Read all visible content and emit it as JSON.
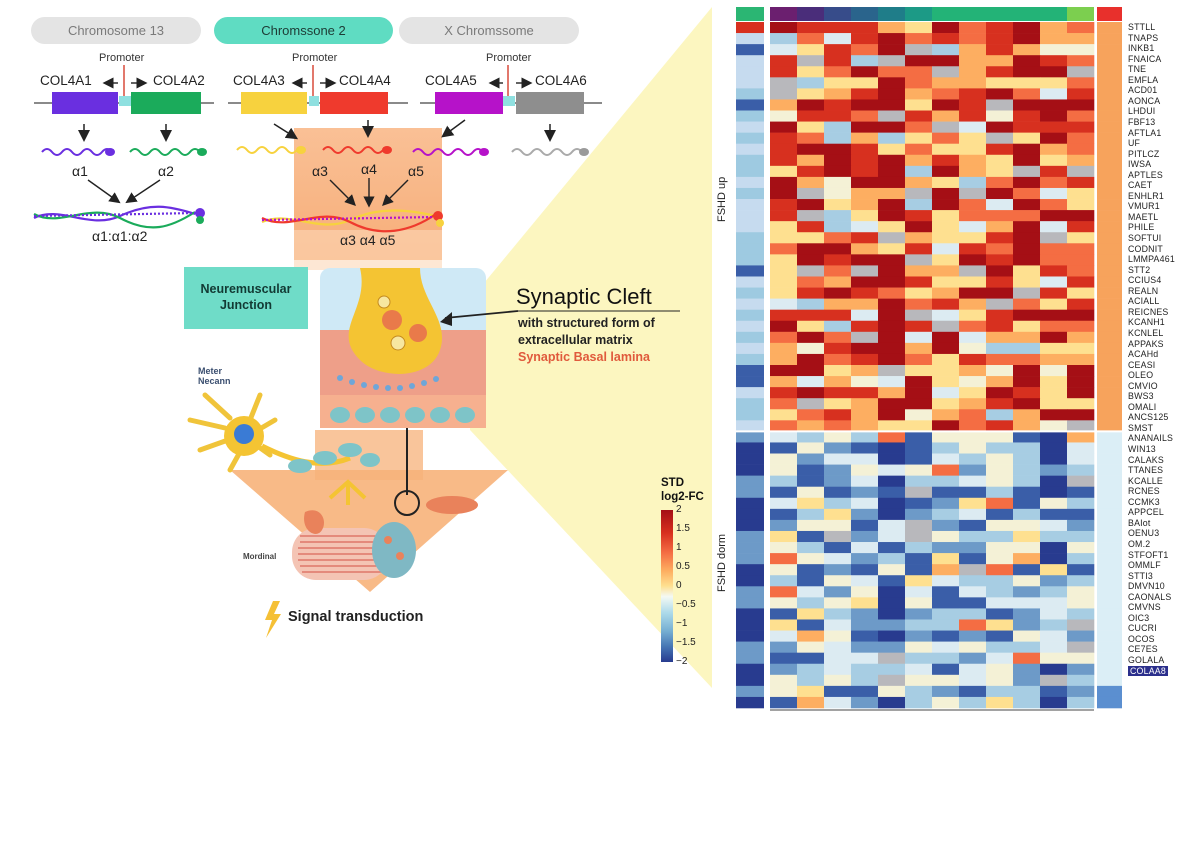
{
  "chromosomes": [
    "Chromosome 13",
    "Chromssone 2",
    "X Chromssome"
  ],
  "genes": [
    "COL4A1",
    "COL4A2",
    "COL4A3",
    "COL4A4",
    "COL4A5",
    "COL4A6"
  ],
  "promoter_label": "Promoter",
  "alpha_chains": [
    "α1",
    "α2",
    "α3",
    "α4",
    "α5"
  ],
  "combos": [
    "α1:α1:α2",
    "α3 α4 α5"
  ],
  "nmj_label": "Neuremuscular Junction",
  "synaptic": {
    "title": "Synaptic Cleft",
    "subtitle1": "with structured form of",
    "subtitle2": "extracellular matrix",
    "subtitle3": "Synaptic Basal lamina"
  },
  "neuron_label": "Meter Necann",
  "muscle_label": "Mordinal",
  "signal_label": "Signal transduction",
  "heatmap": {
    "group_up": "FSHD up",
    "group_down": "FSHD dorm",
    "legend_title_1": "STD",
    "legend_title_2": "log2-FC",
    "legend_ticks": [
      "2",
      "1.5",
      "1",
      "0.5",
      "0",
      "-0.5",
      "-1",
      "-1.5",
      "-2"
    ],
    "genes": [
      "STTLL",
      "TNAPS",
      "INKB1",
      "FNAICA",
      "TNE",
      "EMFLA",
      "ACD01",
      "AONCA",
      "LHDUI",
      "FBF13",
      "AFTLA1",
      "UF",
      "PITLCZ",
      "IWSA",
      "APTLES",
      "CAET",
      "ENHLR1",
      "VMUR1",
      "MAETL",
      "PHILE",
      "SOFTUI",
      "CODNIT",
      "LMMPA461",
      "STT2",
      "CCIUS4",
      "REALN",
      "ACIALL",
      "REICNES",
      "KCANH1",
      "KCNLEL",
      "APPAKS",
      "ACAHd",
      "CEASI",
      "OLEO",
      "CMVIO",
      "BWS3",
      "OMALI",
      "ANCS125",
      "SMST",
      "ANANAILS",
      "WIN13",
      "CALAKS",
      "TTANES",
      "KCALLE",
      "RCNES",
      "CCMK3",
      "APPCEL",
      "BAIot",
      "OENU3",
      "OM.2",
      "STFOFT1",
      "OMMLF",
      "STTI3",
      "DMVN10",
      "CAONALS",
      "CMVNS",
      "OIC3",
      "CUCRI",
      "OCOS",
      "CE7ES",
      "GOLALA",
      "COLAA8"
    ],
    "highlight_gene": "COLAA8"
  },
  "colors": {
    "pill_active": "#5fdcc2",
    "col4a1": "#6a2fe0",
    "col4a2": "#1bab5b",
    "col4a3": "#f7d23e",
    "col4a4": "#ef3a2d",
    "col4a5": "#b612c9",
    "col4a6": "#8e8e8e",
    "funnel": "#f7b27a",
    "spotlight": "#fbf5b5",
    "heat_hot": "#a50f15",
    "heat_cold": "#283b8f"
  }
}
